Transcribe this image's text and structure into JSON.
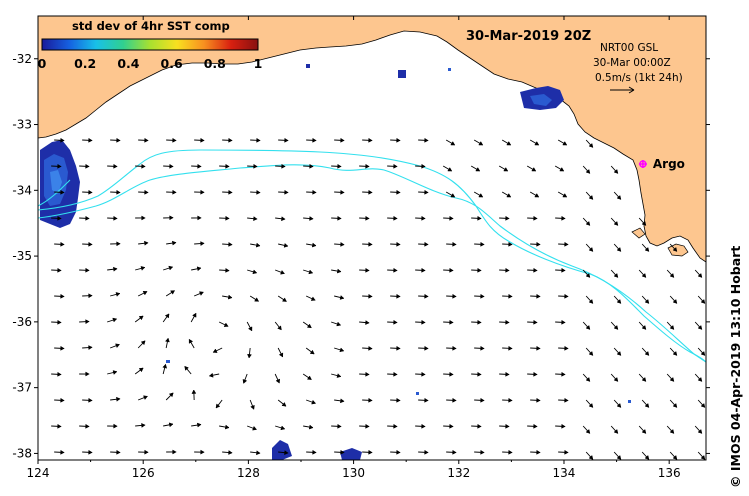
{
  "map": {
    "title": "30-Mar-2019 20Z",
    "lon_range": [
      124,
      136.7
    ],
    "lat_range": [
      -38.1,
      -31.35
    ],
    "x_ticks": [
      124,
      126,
      128,
      130,
      132,
      134,
      136
    ],
    "y_ticks": [
      -32,
      -33,
      -34,
      -35,
      -36,
      -37,
      -38
    ],
    "x_tick_labels": [
      "124",
      "126",
      "128",
      "130",
      "132",
      "134",
      "136"
    ],
    "y_tick_labels": [
      "-32",
      "-33",
      "-34",
      "-35",
      "-36",
      "-37",
      "-38"
    ],
    "land_color": "#fdc68f",
    "ocean_color": "#ffffff",
    "contour_color": "#33e0ee"
  },
  "colorbar": {
    "title": "std dev of 4hr SST comp",
    "ticks": [
      "0",
      "0.2",
      "0.4",
      "0.6",
      "0.8",
      "1"
    ],
    "range": [
      0,
      1
    ],
    "colors": [
      "#1a1a9a",
      "#1560e0",
      "#18c0e8",
      "#30d090",
      "#a8e030",
      "#f8e020",
      "#f89020",
      "#d82010",
      "#881010"
    ]
  },
  "legend": {
    "line1": "NRT00 GSL",
    "line2": "30-Mar 00:00Z",
    "line3": "0.5m/s (1kt 24h)"
  },
  "argo": {
    "label": "Argo",
    "marker_color": "#ff00ff",
    "lon": 135.5,
    "lat": -33.6
  },
  "credit": "© IMOS 04-Apr-2019 13:10 Hobart"
}
